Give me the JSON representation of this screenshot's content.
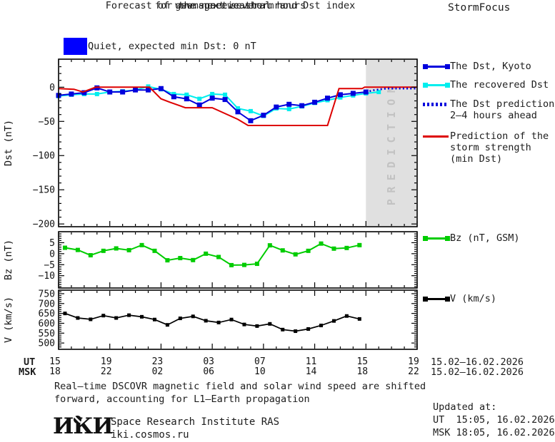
{
  "header": {
    "title_line1": "Forecast of geomagnetic storm and Dst index",
    "title_line2": "for the next several hours",
    "title_line3": "www.spaceweather.ru",
    "brand": "StormFocus",
    "status": {
      "label": "Quiet, expected min Dst: 0 nT",
      "color": "#0000ff"
    }
  },
  "legend": {
    "items": [
      {
        "id": "dst-kyoto",
        "label": "The Dst, Kyoto",
        "color": "#0000dd",
        "style": "line-squares"
      },
      {
        "id": "recovered",
        "label": "The recovered Dst",
        "color": "#00eeee",
        "style": "line-squares"
      },
      {
        "id": "prediction",
        "label": "The Dst prediction",
        "label2": "2–4 hours ahead",
        "color": "#0000dd",
        "style": "dotted"
      },
      {
        "id": "storm",
        "label": "Prediction of the",
        "label2": "storm strength",
        "label3": "(min Dst)",
        "color": "#dd0000",
        "style": "line"
      },
      {
        "id": "bz",
        "label": "Bz (nT, GSM)",
        "color": "#00cc00",
        "style": "line-squares"
      },
      {
        "id": "v",
        "label": "V (km/s)",
        "color": "#000000",
        "style": "line-squares"
      }
    ]
  },
  "prediction_band": {
    "label": "PREDICTION",
    "fill": "#e0e0e0",
    "text_color": "#c2c2c2",
    "start_hour": 24,
    "end_hour": 28
  },
  "chart_data": [
    {
      "type": "line",
      "panel_id": "dst",
      "ylabel": "Dst (nT)",
      "yticks": [
        0,
        -50,
        -100,
        -150,
        -200
      ],
      "ytick_minor": 10,
      "ylim": [
        41,
        -204
      ],
      "xlim_hours": [
        0,
        28
      ],
      "series": [
        {
          "name": "The recovered Dst",
          "color": "#00eeee",
          "marker": "square",
          "marker_size": 6,
          "width": 2,
          "x": [
            0,
            1,
            2,
            3,
            4,
            5,
            6,
            7,
            8,
            9,
            10,
            11,
            12,
            13,
            14,
            15,
            16,
            17,
            18,
            19,
            20,
            21,
            22,
            23,
            24,
            25
          ],
          "values": [
            -13,
            -11,
            -10,
            -10,
            -7,
            -6,
            -4,
            1,
            -3,
            -10,
            -11,
            -17,
            -10,
            -11,
            -31,
            -35,
            -42,
            -31,
            -32,
            -28,
            -23,
            -19,
            -15,
            -12,
            -9,
            -7
          ]
        },
        {
          "name": "The Dst, Kyoto",
          "color": "#0000dd",
          "marker": "square",
          "marker_size": 7,
          "width": 2,
          "x": [
            0,
            1,
            2,
            3,
            4,
            5,
            6,
            7,
            8,
            9,
            10,
            11,
            12,
            13,
            14,
            15,
            16,
            17,
            18,
            19,
            20,
            21,
            22,
            23,
            24
          ],
          "values": [
            -12,
            -10,
            -8,
            -1,
            -7,
            -7,
            -4,
            -4,
            -2,
            -14,
            -17,
            -26,
            -16,
            -18,
            -36,
            -49,
            -41,
            -29,
            -25,
            -27,
            -22,
            -16,
            -11,
            -9,
            -7
          ]
        },
        {
          "name": "Prediction of the storm strength (min Dst)",
          "color": "#dd0000",
          "style": "solid",
          "width": 2,
          "x": [
            0,
            1.2,
            1.9,
            2.9,
            7.1,
            8.0,
            8.7,
            9.9,
            12.0,
            14.0,
            14.8,
            21.0,
            21.9,
            23.7,
            23.9,
            28
          ],
          "values": [
            -2,
            -3,
            -7,
            0,
            0,
            -17,
            -22,
            -30,
            -30,
            -47,
            -56,
            -56,
            -2,
            -2,
            0,
            0
          ]
        },
        {
          "name": "The Dst prediction 2–4 hours ahead",
          "color": "#0000dd",
          "style": "dotted",
          "width": 2.6,
          "x": [
            24,
            24.7,
            25.6,
            28
          ],
          "values": [
            -7,
            -4,
            -2,
            -2
          ]
        }
      ]
    },
    {
      "type": "line",
      "panel_id": "bz",
      "ylabel": "Bz (nT)",
      "yticks": [
        5,
        0,
        -5,
        -10
      ],
      "ytick_minor": 1,
      "ylim": [
        10,
        -15.6
      ],
      "xlim_hours": [
        0,
        28
      ],
      "series": [
        {
          "name": "Bz (nT, GSM)",
          "color": "#00cc00",
          "marker": "square",
          "marker_size": 6,
          "width": 2,
          "x": [
            0.5,
            1.5,
            2.5,
            3.5,
            4.5,
            5.5,
            6.5,
            7.5,
            8.5,
            9.5,
            10.5,
            11.5,
            12.5,
            13.5,
            14.5,
            15.5,
            16.5,
            17.5,
            18.5,
            19.5,
            20.5,
            21.5,
            22.5,
            23.5
          ],
          "values": [
            2.7,
            1.7,
            -0.7,
            1.3,
            2.4,
            1.6,
            3.9,
            1.3,
            -3,
            -2,
            -2.9,
            0,
            -1.5,
            -5.2,
            -5.1,
            -4.6,
            3.8,
            1.5,
            -0.3,
            1.3,
            4.6,
            2.3,
            2.6,
            3.9
          ]
        }
      ]
    },
    {
      "type": "line",
      "panel_id": "v",
      "ylabel": "V (km/s)",
      "yticks": [
        750,
        700,
        650,
        600,
        550,
        500
      ],
      "ytick_minor": 10,
      "ylim": [
        768,
        468
      ],
      "xlim_hours": [
        0,
        28
      ],
      "series": [
        {
          "name": "V (km/s)",
          "color": "#000000",
          "marker": "square",
          "marker_size": 5,
          "width": 1.7,
          "x": [
            0.5,
            1.5,
            2.5,
            3.5,
            4.5,
            5.5,
            6.5,
            7.5,
            8.5,
            9.5,
            10.5,
            11.5,
            12.5,
            13.5,
            14.5,
            15.5,
            16.5,
            17.5,
            18.5,
            19.5,
            20.5,
            21.5,
            22.5,
            23.5
          ],
          "values": [
            650,
            627,
            620,
            639,
            627,
            641,
            633,
            619,
            592,
            625,
            635,
            613,
            604,
            619,
            594,
            586,
            597,
            568,
            560,
            571,
            589,
            612,
            637,
            622
          ]
        }
      ]
    }
  ],
  "xaxis": {
    "row1_label": "UT",
    "row2_label": "MSK",
    "row1_ticks": [
      "15",
      "19",
      "23",
      "03",
      "07",
      "11",
      "15",
      "19"
    ],
    "row2_ticks": [
      "18",
      "22",
      "02",
      "06",
      "10",
      "14",
      "18",
      "22"
    ],
    "row1_date": "15.02–16.02.2026",
    "row2_date": "15.02–16.02.2026",
    "major_every_hours": 4
  },
  "footer": {
    "note_line1": "Real–time DSCOVR magnetic field and solar wind speed are shifted",
    "note_line2": "forward, accounting for L1–Earth propagation",
    "logo_text": "ИКИ",
    "institute": "Space Research Institute RAS",
    "website": "iki.cosmos.ru",
    "updated_label": "Updated at:",
    "updated_ut": "UT  15:05, 16.02.2026",
    "updated_msk": "MSK 18:05, 16.02.2026"
  }
}
